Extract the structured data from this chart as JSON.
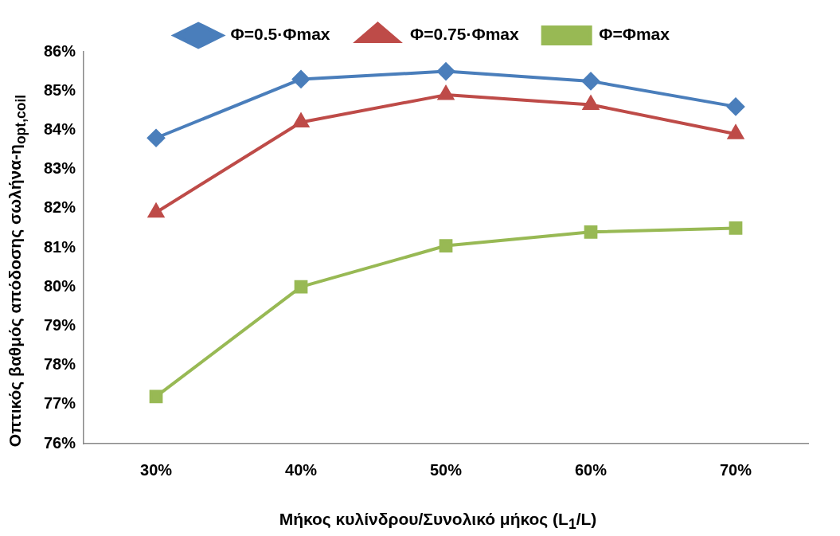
{
  "chart_data": {
    "type": "line",
    "xlabel": "Μήκος κυλίνδρου/Συνολικό μήκος (L$_{1}$/L)",
    "ylabel": "Οπτικός βαθμός απόδοσης σωλήνα-η$_{opt,coil}$",
    "categories": [
      "30%",
      "40%",
      "50%",
      "60%",
      "70%"
    ],
    "series": [
      {
        "name": "Φ=0.5·Φmax",
        "color": "#4a7ebb",
        "marker": "diamond",
        "values": [
          83.8,
          85.3,
          85.5,
          85.25,
          84.6
        ]
      },
      {
        "name": "Φ=0.75·Φmax",
        "color": "#be4b48",
        "marker": "triangle",
        "values": [
          81.9,
          84.2,
          84.9,
          84.65,
          83.9
        ]
      },
      {
        "name": "Φ=Φmax",
        "color": "#98b954",
        "marker": "square",
        "values": [
          77.2,
          80.0,
          81.05,
          81.4,
          81.5
        ]
      }
    ],
    "ylim": [
      76,
      86
    ],
    "yticks": [
      {
        "value": 76,
        "label": "76%"
      },
      {
        "value": 77,
        "label": "77%"
      },
      {
        "value": 78,
        "label": "78%"
      },
      {
        "value": 79,
        "label": "79%"
      },
      {
        "value": 80,
        "label": "80%"
      },
      {
        "value": 81,
        "label": "81%"
      },
      {
        "value": 82,
        "label": "82%"
      },
      {
        "value": 83,
        "label": "83%"
      },
      {
        "value": 84,
        "label": "84%"
      },
      {
        "value": 85,
        "label": "85%"
      },
      {
        "value": 86,
        "label": "86%"
      }
    ],
    "grid": false,
    "legend": "top",
    "line_style": "solid"
  }
}
